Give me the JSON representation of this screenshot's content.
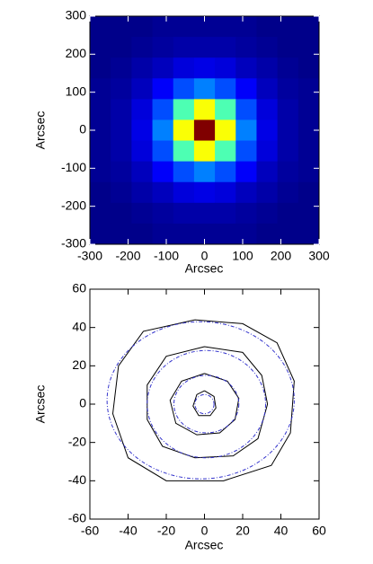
{
  "chart_data": [
    {
      "type": "heatmap",
      "xlabel": "Arcsec",
      "ylabel": "Arcsec",
      "xlim": [
        -300,
        300
      ],
      "ylim": [
        -300,
        300
      ],
      "xticks": [
        -300,
        -200,
        -100,
        0,
        100,
        200,
        300
      ],
      "yticks": [
        -300,
        -200,
        -100,
        0,
        100,
        200,
        300
      ],
      "colormap": "jet",
      "zlim": [
        0,
        100
      ],
      "z": [
        [
          1,
          1,
          1,
          2,
          2,
          2,
          2,
          2,
          1,
          1,
          1
        ],
        [
          1,
          1,
          2,
          3,
          4,
          4,
          4,
          3,
          2,
          1,
          1
        ],
        [
          1,
          2,
          4,
          6,
          9,
          10,
          9,
          6,
          4,
          2,
          1
        ],
        [
          2,
          3,
          6,
          12,
          20,
          25,
          20,
          12,
          6,
          3,
          2
        ],
        [
          2,
          4,
          9,
          20,
          45,
          62,
          45,
          20,
          9,
          4,
          2
        ],
        [
          2,
          4,
          10,
          25,
          62,
          100,
          62,
          25,
          10,
          4,
          2
        ],
        [
          2,
          4,
          9,
          20,
          45,
          62,
          45,
          20,
          9,
          4,
          2
        ],
        [
          2,
          3,
          6,
          12,
          20,
          25,
          20,
          12,
          6,
          3,
          2
        ],
        [
          1,
          2,
          4,
          6,
          9,
          10,
          9,
          6,
          4,
          2,
          1
        ],
        [
          1,
          1,
          2,
          3,
          4,
          4,
          4,
          3,
          2,
          1,
          1
        ],
        [
          1,
          1,
          1,
          2,
          2,
          2,
          2,
          2,
          1,
          1,
          1
        ]
      ]
    },
    {
      "type": "contour",
      "xlabel": "Arcsec",
      "ylabel": "Arcsec",
      "xlim": [
        -60,
        60
      ],
      "ylim": [
        -60,
        60
      ],
      "xticks": [
        -60,
        -40,
        -20,
        0,
        20,
        40,
        60
      ],
      "yticks": [
        -60,
        -40,
        -20,
        0,
        20,
        40,
        60
      ],
      "series": [
        {
          "color": "#000000",
          "x": [
            0,
            5,
            6,
            3,
            -3,
            -6,
            -4,
            0
          ],
          "y": [
            7,
            4,
            -2,
            -6,
            -6,
            -1,
            5,
            7
          ]
        },
        {
          "color": "#000000",
          "x": [
            0,
            12,
            18,
            16,
            8,
            -4,
            -15,
            -18,
            -12,
            0
          ],
          "y": [
            16,
            12,
            3,
            -8,
            -15,
            -16,
            -10,
            2,
            12,
            16
          ]
        },
        {
          "color": "#000000",
          "x": [
            0,
            20,
            30,
            33,
            28,
            15,
            -5,
            -22,
            -30,
            -30,
            -20,
            0
          ],
          "y": [
            30,
            27,
            15,
            0,
            -18,
            -27,
            -28,
            -22,
            -8,
            10,
            25,
            30
          ]
        },
        {
          "color": "#000000",
          "x": [
            -5,
            20,
            38,
            47,
            45,
            35,
            10,
            -20,
            -40,
            -48,
            -45,
            -32,
            -5
          ],
          "y": [
            44,
            42,
            32,
            12,
            -15,
            -32,
            -40,
            -40,
            -28,
            -5,
            20,
            38,
            44
          ]
        }
      ],
      "ellipses": {
        "color": "#3333cc",
        "dashed": true,
        "items": [
          {
            "cx": 0,
            "cy": 0,
            "rx": 5,
            "ry": 5
          },
          {
            "cx": 1,
            "cy": 0,
            "rx": 17,
            "ry": 15
          },
          {
            "cx": 1,
            "cy": 0,
            "rx": 31,
            "ry": 28
          },
          {
            "cx": -2,
            "cy": 2,
            "rx": 49,
            "ry": 41
          }
        ]
      }
    }
  ]
}
